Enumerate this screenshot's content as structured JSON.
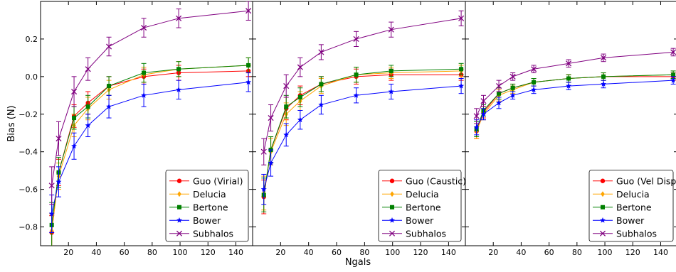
{
  "figure": {
    "xlabel": "Ngals",
    "ylabel": "Bias (N)"
  },
  "chart_data": [
    {
      "type": "line",
      "xlabel": "Ngals",
      "ylabel": "Bias (N)",
      "xlim": [
        0,
        152
      ],
      "ylim": [
        -0.9,
        0.4
      ],
      "xticks": [
        "20",
        "40",
        "60",
        "80",
        "100",
        "120",
        "140"
      ],
      "yticks": [
        "−0.8",
        "−0.6",
        "−0.4",
        "−0.2",
        "0.0",
        "0.2"
      ],
      "legend_position": "lower-right",
      "x": [
        8,
        13,
        24,
        34,
        49,
        74,
        99,
        149
      ],
      "series": [
        {
          "name": "Guo (Virial)",
          "color": "#ff0000",
          "marker": "circle",
          "values": [
            -0.83,
            -0.51,
            -0.21,
            -0.14,
            -0.05,
            0.0,
            0.02,
            0.03
          ],
          "errors": [
            0.09,
            0.07,
            0.06,
            0.06,
            0.05,
            0.04,
            0.04,
            0.03
          ]
        },
        {
          "name": "Delucia",
          "color": "#ffa500",
          "marker": "diamond",
          "values": [
            -0.82,
            -0.53,
            -0.26,
            -0.17,
            -0.07,
            0.01,
            0.04,
            0.06
          ],
          "errors": [
            0.09,
            0.07,
            0.06,
            0.06,
            0.05,
            0.04,
            0.04,
            0.04
          ]
        },
        {
          "name": "Bertone",
          "color": "#008000",
          "marker": "square",
          "values": [
            -0.79,
            -0.51,
            -0.22,
            -0.16,
            -0.05,
            0.02,
            0.04,
            0.06
          ],
          "errors": [
            0.12,
            0.08,
            0.06,
            0.06,
            0.05,
            0.05,
            0.04,
            0.04
          ]
        },
        {
          "name": "Bower",
          "color": "#0000ff",
          "marker": "star",
          "values": [
            -0.73,
            -0.56,
            -0.37,
            -0.26,
            -0.16,
            -0.1,
            -0.07,
            -0.03
          ],
          "errors": [
            0.1,
            0.08,
            0.07,
            0.06,
            0.06,
            0.06,
            0.05,
            0.05
          ]
        },
        {
          "name": "Subhalos",
          "color": "#800080",
          "marker": "x",
          "values": [
            -0.58,
            -0.33,
            -0.08,
            0.04,
            0.16,
            0.26,
            0.31,
            0.35
          ],
          "errors": [
            0.1,
            0.09,
            0.08,
            0.06,
            0.05,
            0.05,
            0.05,
            0.05
          ]
        }
      ]
    },
    {
      "type": "line",
      "xlabel": "Ngals",
      "ylabel": "",
      "xlim": [
        0,
        152
      ],
      "ylim": [
        -0.9,
        0.4
      ],
      "xticks": [
        "20",
        "40",
        "60",
        "80",
        "100",
        "120",
        "140"
      ],
      "yticks": [],
      "legend_position": "lower-right",
      "x": [
        8,
        13,
        24,
        34,
        49,
        74,
        99,
        149
      ],
      "series": [
        {
          "name": "Guo (Caustic)",
          "color": "#ff0000",
          "marker": "circle",
          "values": [
            -0.64,
            -0.39,
            -0.17,
            -0.1,
            -0.04,
            0.0,
            0.01,
            0.01
          ],
          "errors": [
            0.09,
            0.07,
            0.06,
            0.05,
            0.04,
            0.04,
            0.03,
            0.03
          ]
        },
        {
          "name": "Delucia",
          "color": "#ffa500",
          "marker": "diamond",
          "values": [
            -0.62,
            -0.4,
            -0.2,
            -0.13,
            -0.05,
            0.01,
            0.02,
            0.03
          ],
          "errors": [
            0.09,
            0.07,
            0.06,
            0.05,
            0.04,
            0.04,
            0.03,
            0.03
          ]
        },
        {
          "name": "Bertone",
          "color": "#008000",
          "marker": "square",
          "values": [
            -0.63,
            -0.39,
            -0.16,
            -0.11,
            -0.04,
            0.01,
            0.03,
            0.04
          ],
          "errors": [
            0.09,
            0.07,
            0.06,
            0.05,
            0.04,
            0.04,
            0.03,
            0.03
          ]
        },
        {
          "name": "Bower",
          "color": "#0000ff",
          "marker": "star",
          "values": [
            -0.6,
            -0.46,
            -0.31,
            -0.23,
            -0.15,
            -0.1,
            -0.08,
            -0.05
          ],
          "errors": [
            0.08,
            0.07,
            0.06,
            0.05,
            0.05,
            0.04,
            0.04,
            0.04
          ]
        },
        {
          "name": "Subhalos",
          "color": "#800080",
          "marker": "x",
          "values": [
            -0.4,
            -0.22,
            -0.05,
            0.05,
            0.13,
            0.2,
            0.25,
            0.31
          ],
          "errors": [
            0.07,
            0.07,
            0.06,
            0.05,
            0.04,
            0.04,
            0.04,
            0.04
          ]
        }
      ]
    },
    {
      "type": "line",
      "xlabel": "Ngals",
      "ylabel": "",
      "xlim": [
        0,
        152
      ],
      "ylim": [
        -0.9,
        0.4
      ],
      "xticks": [
        "20",
        "40",
        "60",
        "80",
        "100",
        "120",
        "140"
      ],
      "yticks": [],
      "legend_position": "lower-right",
      "x": [
        8,
        13,
        24,
        34,
        49,
        74,
        99,
        149
      ],
      "series": [
        {
          "name": "Guo (Vel Disp)",
          "color": "#ff0000",
          "marker": "circle",
          "values": [
            -0.29,
            -0.19,
            -0.09,
            -0.06,
            -0.03,
            -0.01,
            0.0,
            0.0
          ],
          "errors": [
            0.04,
            0.03,
            0.03,
            0.02,
            0.02,
            0.02,
            0.02,
            0.02
          ]
        },
        {
          "name": "Delucia",
          "color": "#ffa500",
          "marker": "diamond",
          "values": [
            -0.29,
            -0.2,
            -0.1,
            -0.07,
            -0.03,
            -0.01,
            0.0,
            0.01
          ],
          "errors": [
            0.04,
            0.03,
            0.03,
            0.02,
            0.02,
            0.02,
            0.02,
            0.02
          ]
        },
        {
          "name": "Bertone",
          "color": "#008000",
          "marker": "square",
          "values": [
            -0.28,
            -0.18,
            -0.09,
            -0.06,
            -0.03,
            -0.01,
            0.0,
            0.01
          ],
          "errors": [
            0.04,
            0.03,
            0.03,
            0.02,
            0.02,
            0.02,
            0.02,
            0.02
          ]
        },
        {
          "name": "Bower",
          "color": "#0000ff",
          "marker": "star",
          "values": [
            -0.27,
            -0.2,
            -0.14,
            -0.1,
            -0.07,
            -0.05,
            -0.04,
            -0.02
          ],
          "errors": [
            0.04,
            0.03,
            0.03,
            0.02,
            0.02,
            0.02,
            0.02,
            0.02
          ]
        },
        {
          "name": "Subhalos",
          "color": "#800080",
          "marker": "x",
          "values": [
            -0.21,
            -0.13,
            -0.05,
            0.0,
            0.04,
            0.07,
            0.1,
            0.13
          ],
          "errors": [
            0.04,
            0.03,
            0.03,
            0.02,
            0.02,
            0.02,
            0.02,
            0.02
          ]
        }
      ]
    }
  ]
}
